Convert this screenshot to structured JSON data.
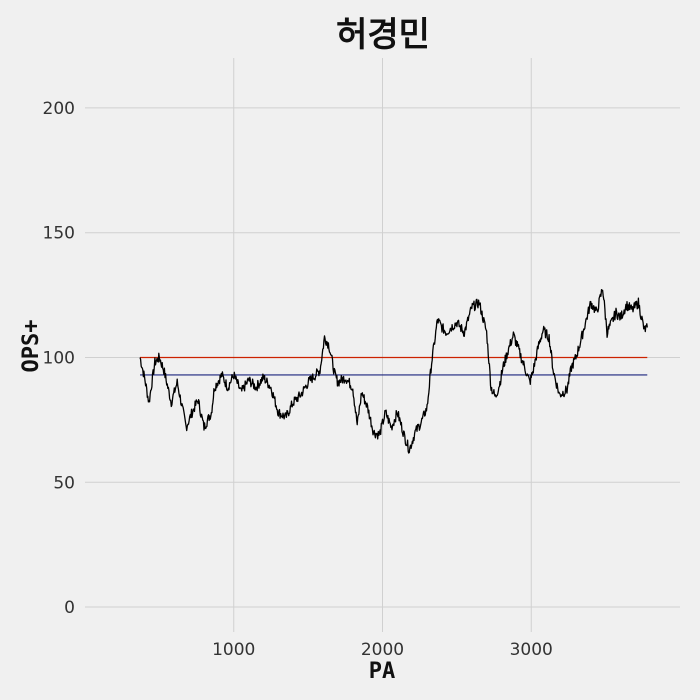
{
  "chart_data": {
    "type": "line",
    "title": "허경민",
    "xlabel": "PA",
    "ylabel": "OPS+",
    "xlim": [
      0,
      4000
    ],
    "ylim": [
      -10,
      220
    ],
    "x_ticks": [
      1000,
      2000,
      3000
    ],
    "y_ticks": [
      0,
      50,
      100,
      150,
      200
    ],
    "grid": true,
    "reference_lines": [
      {
        "y": 100,
        "color": "#cc2200"
      },
      {
        "y": 93,
        "color": "#1a237e"
      }
    ],
    "series": [
      {
        "color": "#000000",
        "x": [
          370,
          400,
          430,
          470,
          500,
          530,
          580,
          620,
          680,
          720,
          760,
          800,
          850,
          870,
          920,
          960,
          1000,
          1050,
          1100,
          1150,
          1200,
          1250,
          1300,
          1350,
          1400,
          1450,
          1500,
          1550,
          1580,
          1610,
          1640,
          1680,
          1700,
          1750,
          1800,
          1830,
          1860,
          1900,
          1940,
          1980,
          2020,
          2060,
          2100,
          2150,
          2180,
          2220,
          2260,
          2300,
          2330,
          2370,
          2400,
          2430,
          2460,
          2500,
          2550,
          2600,
          2650,
          2700,
          2730,
          2760,
          2790,
          2810,
          2840,
          2880,
          2910,
          2950,
          2990,
          3010,
          3050,
          3080,
          3120,
          3150,
          3190,
          3240,
          3270,
          3300,
          3330,
          3360,
          3400,
          3440,
          3480,
          3510,
          3540,
          3570,
          3600,
          3640,
          3680,
          3720,
          3760,
          3780
        ],
        "y": [
          100,
          92,
          82,
          98,
          100,
          95,
          82,
          90,
          72,
          78,
          83,
          72,
          78,
          88,
          93,
          88,
          93,
          86,
          91,
          88,
          92,
          88,
          78,
          76,
          82,
          85,
          90,
          93,
          95,
          108,
          105,
          93,
          90,
          92,
          88,
          73,
          86,
          80,
          70,
          69,
          78,
          72,
          78,
          68,
          63,
          70,
          74,
          80,
          98,
          115,
          112,
          110,
          112,
          114,
          110,
          120,
          122,
          110,
          88,
          84,
          90,
          96,
          102,
          109,
          104,
          97,
          90,
          94,
          105,
          111,
          108,
          94,
          85,
          87,
          96,
          100,
          106,
          113,
          122,
          118,
          128,
          110,
          114,
          118,
          116,
          121,
          119,
          122,
          111,
          112
        ]
      }
    ]
  }
}
